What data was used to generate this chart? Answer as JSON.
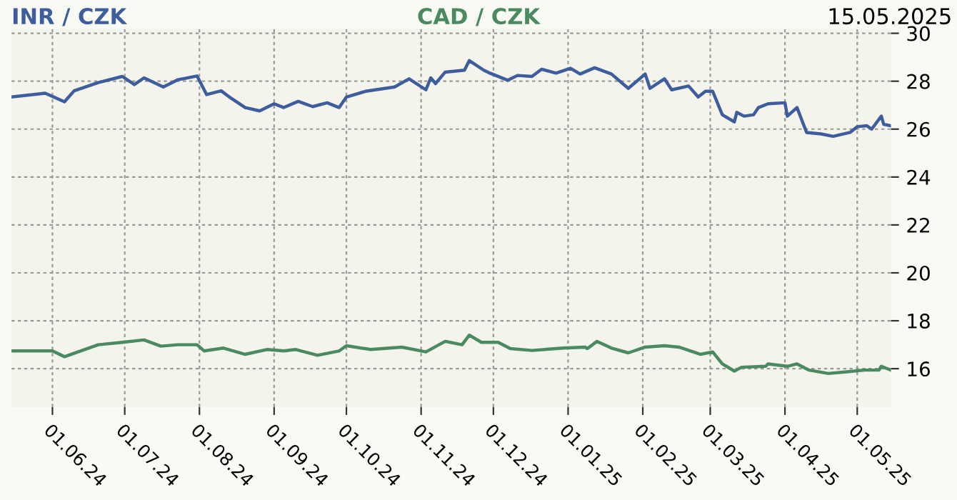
{
  "chart_data": {
    "type": "line",
    "annotations": [
      "15.05.2025"
    ],
    "xlim": [
      "2024-05-15",
      "2025-05-15"
    ],
    "xticks": [
      {
        "value": "2024-06-01",
        "label": "01.06.24"
      },
      {
        "value": "2024-07-01",
        "label": "01.07.24"
      },
      {
        "value": "2024-08-01",
        "label": "01.08.24"
      },
      {
        "value": "2024-09-01",
        "label": "01.09.24"
      },
      {
        "value": "2024-10-01",
        "label": "01.10.24"
      },
      {
        "value": "2024-11-01",
        "label": "01.11.24"
      },
      {
        "value": "2024-12-01",
        "label": "01.12.24"
      },
      {
        "value": "2025-01-01",
        "label": "01.01.25"
      },
      {
        "value": "2025-02-01",
        "label": "01.02.25"
      },
      {
        "value": "2025-03-01",
        "label": "01.03.25"
      },
      {
        "value": "2025-04-01",
        "label": "01.04.25"
      },
      {
        "value": "2025-05-01",
        "label": "01.05.25"
      }
    ],
    "ylim": [
      14.4,
      30.2
    ],
    "yticks": [
      16,
      18,
      20,
      22,
      24,
      26,
      28,
      30
    ],
    "grid": true,
    "legend": false,
    "line_style": "solid",
    "marker": "none",
    "series": [
      {
        "name": "INR / CZK",
        "color": "#3d5d9c",
        "x": [
          "2024-05-15",
          "2024-05-29",
          "2024-06-06",
          "2024-06-10",
          "2024-06-20",
          "2024-06-30",
          "2024-07-05",
          "2024-07-09",
          "2024-07-17",
          "2024-07-23",
          "2024-07-31",
          "2024-08-04",
          "2024-08-10",
          "2024-08-14",
          "2024-08-20",
          "2024-08-26",
          "2024-09-01",
          "2024-09-05",
          "2024-09-11",
          "2024-09-17",
          "2024-09-23",
          "2024-09-28",
          "2024-10-01",
          "2024-10-09",
          "2024-10-21",
          "2024-10-27",
          "2024-11-03",
          "2024-11-05",
          "2024-11-07",
          "2024-11-11",
          "2024-11-19",
          "2024-11-21",
          "2024-11-27",
          "2024-11-29",
          "2024-12-07",
          "2024-12-11",
          "2024-12-17",
          "2024-12-21",
          "2024-12-27",
          "2025-01-02",
          "2025-01-06",
          "2025-01-12",
          "2025-01-19",
          "2025-01-26",
          "2025-02-02",
          "2025-02-04",
          "2025-02-10",
          "2025-02-13",
          "2025-02-20",
          "2025-02-24",
          "2025-02-27",
          "2025-03-02",
          "2025-03-06",
          "2025-03-11",
          "2025-03-12",
          "2025-03-15",
          "2025-03-19",
          "2025-03-21",
          "2025-03-25",
          "2025-04-01",
          "2025-04-02",
          "2025-04-06",
          "2025-04-10",
          "2025-04-16",
          "2025-04-21",
          "2025-04-28",
          "2025-05-01",
          "2025-05-05",
          "2025-05-07",
          "2025-05-11",
          "2025-05-12",
          "2025-05-15"
        ],
        "values": [
          27.34,
          27.5,
          27.14,
          27.6,
          27.94,
          28.2,
          27.86,
          28.14,
          27.76,
          28.06,
          28.22,
          27.44,
          27.6,
          27.3,
          26.9,
          26.76,
          27.06,
          26.9,
          27.16,
          26.94,
          27.1,
          26.9,
          27.34,
          27.58,
          27.76,
          28.1,
          27.64,
          28.14,
          27.9,
          28.38,
          28.46,
          28.86,
          28.46,
          28.36,
          28.04,
          28.24,
          28.2,
          28.5,
          28.34,
          28.54,
          28.3,
          28.56,
          28.3,
          27.7,
          28.3,
          27.7,
          28.1,
          27.64,
          27.8,
          27.34,
          27.58,
          27.58,
          26.6,
          26.3,
          26.7,
          26.54,
          26.6,
          26.9,
          27.06,
          27.1,
          26.54,
          26.9,
          25.86,
          25.8,
          25.7,
          25.86,
          26.1,
          26.14,
          26.0,
          26.54,
          26.2,
          26.14
        ]
      },
      {
        "name": "CAD / CZK",
        "color": "#4a8a60",
        "x": [
          "2024-05-15",
          "2024-06-01",
          "2024-06-06",
          "2024-06-20",
          "2024-06-30",
          "2024-07-09",
          "2024-07-16",
          "2024-07-23",
          "2024-07-31",
          "2024-08-03",
          "2024-08-11",
          "2024-08-20",
          "2024-08-29",
          "2024-09-05",
          "2024-09-10",
          "2024-09-19",
          "2024-09-28",
          "2024-10-01",
          "2024-10-11",
          "2024-10-24",
          "2024-11-03",
          "2024-11-11",
          "2024-11-18",
          "2024-11-21",
          "2024-11-26",
          "2024-12-03",
          "2024-12-08",
          "2024-12-17",
          "2024-12-30",
          "2025-01-08",
          "2025-01-09",
          "2025-01-13",
          "2025-01-19",
          "2025-01-26",
          "2025-02-02",
          "2025-02-10",
          "2025-02-16",
          "2025-02-25",
          "2025-03-02",
          "2025-03-06",
          "2025-03-11",
          "2025-03-14",
          "2025-03-24",
          "2025-03-25",
          "2025-04-02",
          "2025-04-06",
          "2025-04-11",
          "2025-04-19",
          "2025-04-26",
          "2025-05-04",
          "2025-05-10",
          "2025-05-11",
          "2025-05-15"
        ],
        "values": [
          16.74,
          16.74,
          16.5,
          17.0,
          17.1,
          17.2,
          16.94,
          17.0,
          17.0,
          16.74,
          16.86,
          16.6,
          16.8,
          16.74,
          16.8,
          16.56,
          16.74,
          16.96,
          16.8,
          16.9,
          16.7,
          17.14,
          17.0,
          17.4,
          17.1,
          17.1,
          16.84,
          16.76,
          16.86,
          16.9,
          16.84,
          17.14,
          16.86,
          16.66,
          16.9,
          16.96,
          16.9,
          16.6,
          16.7,
          16.2,
          15.9,
          16.06,
          16.1,
          16.2,
          16.1,
          16.2,
          15.94,
          15.8,
          15.86,
          15.94,
          15.94,
          16.1,
          15.94
        ]
      }
    ]
  }
}
